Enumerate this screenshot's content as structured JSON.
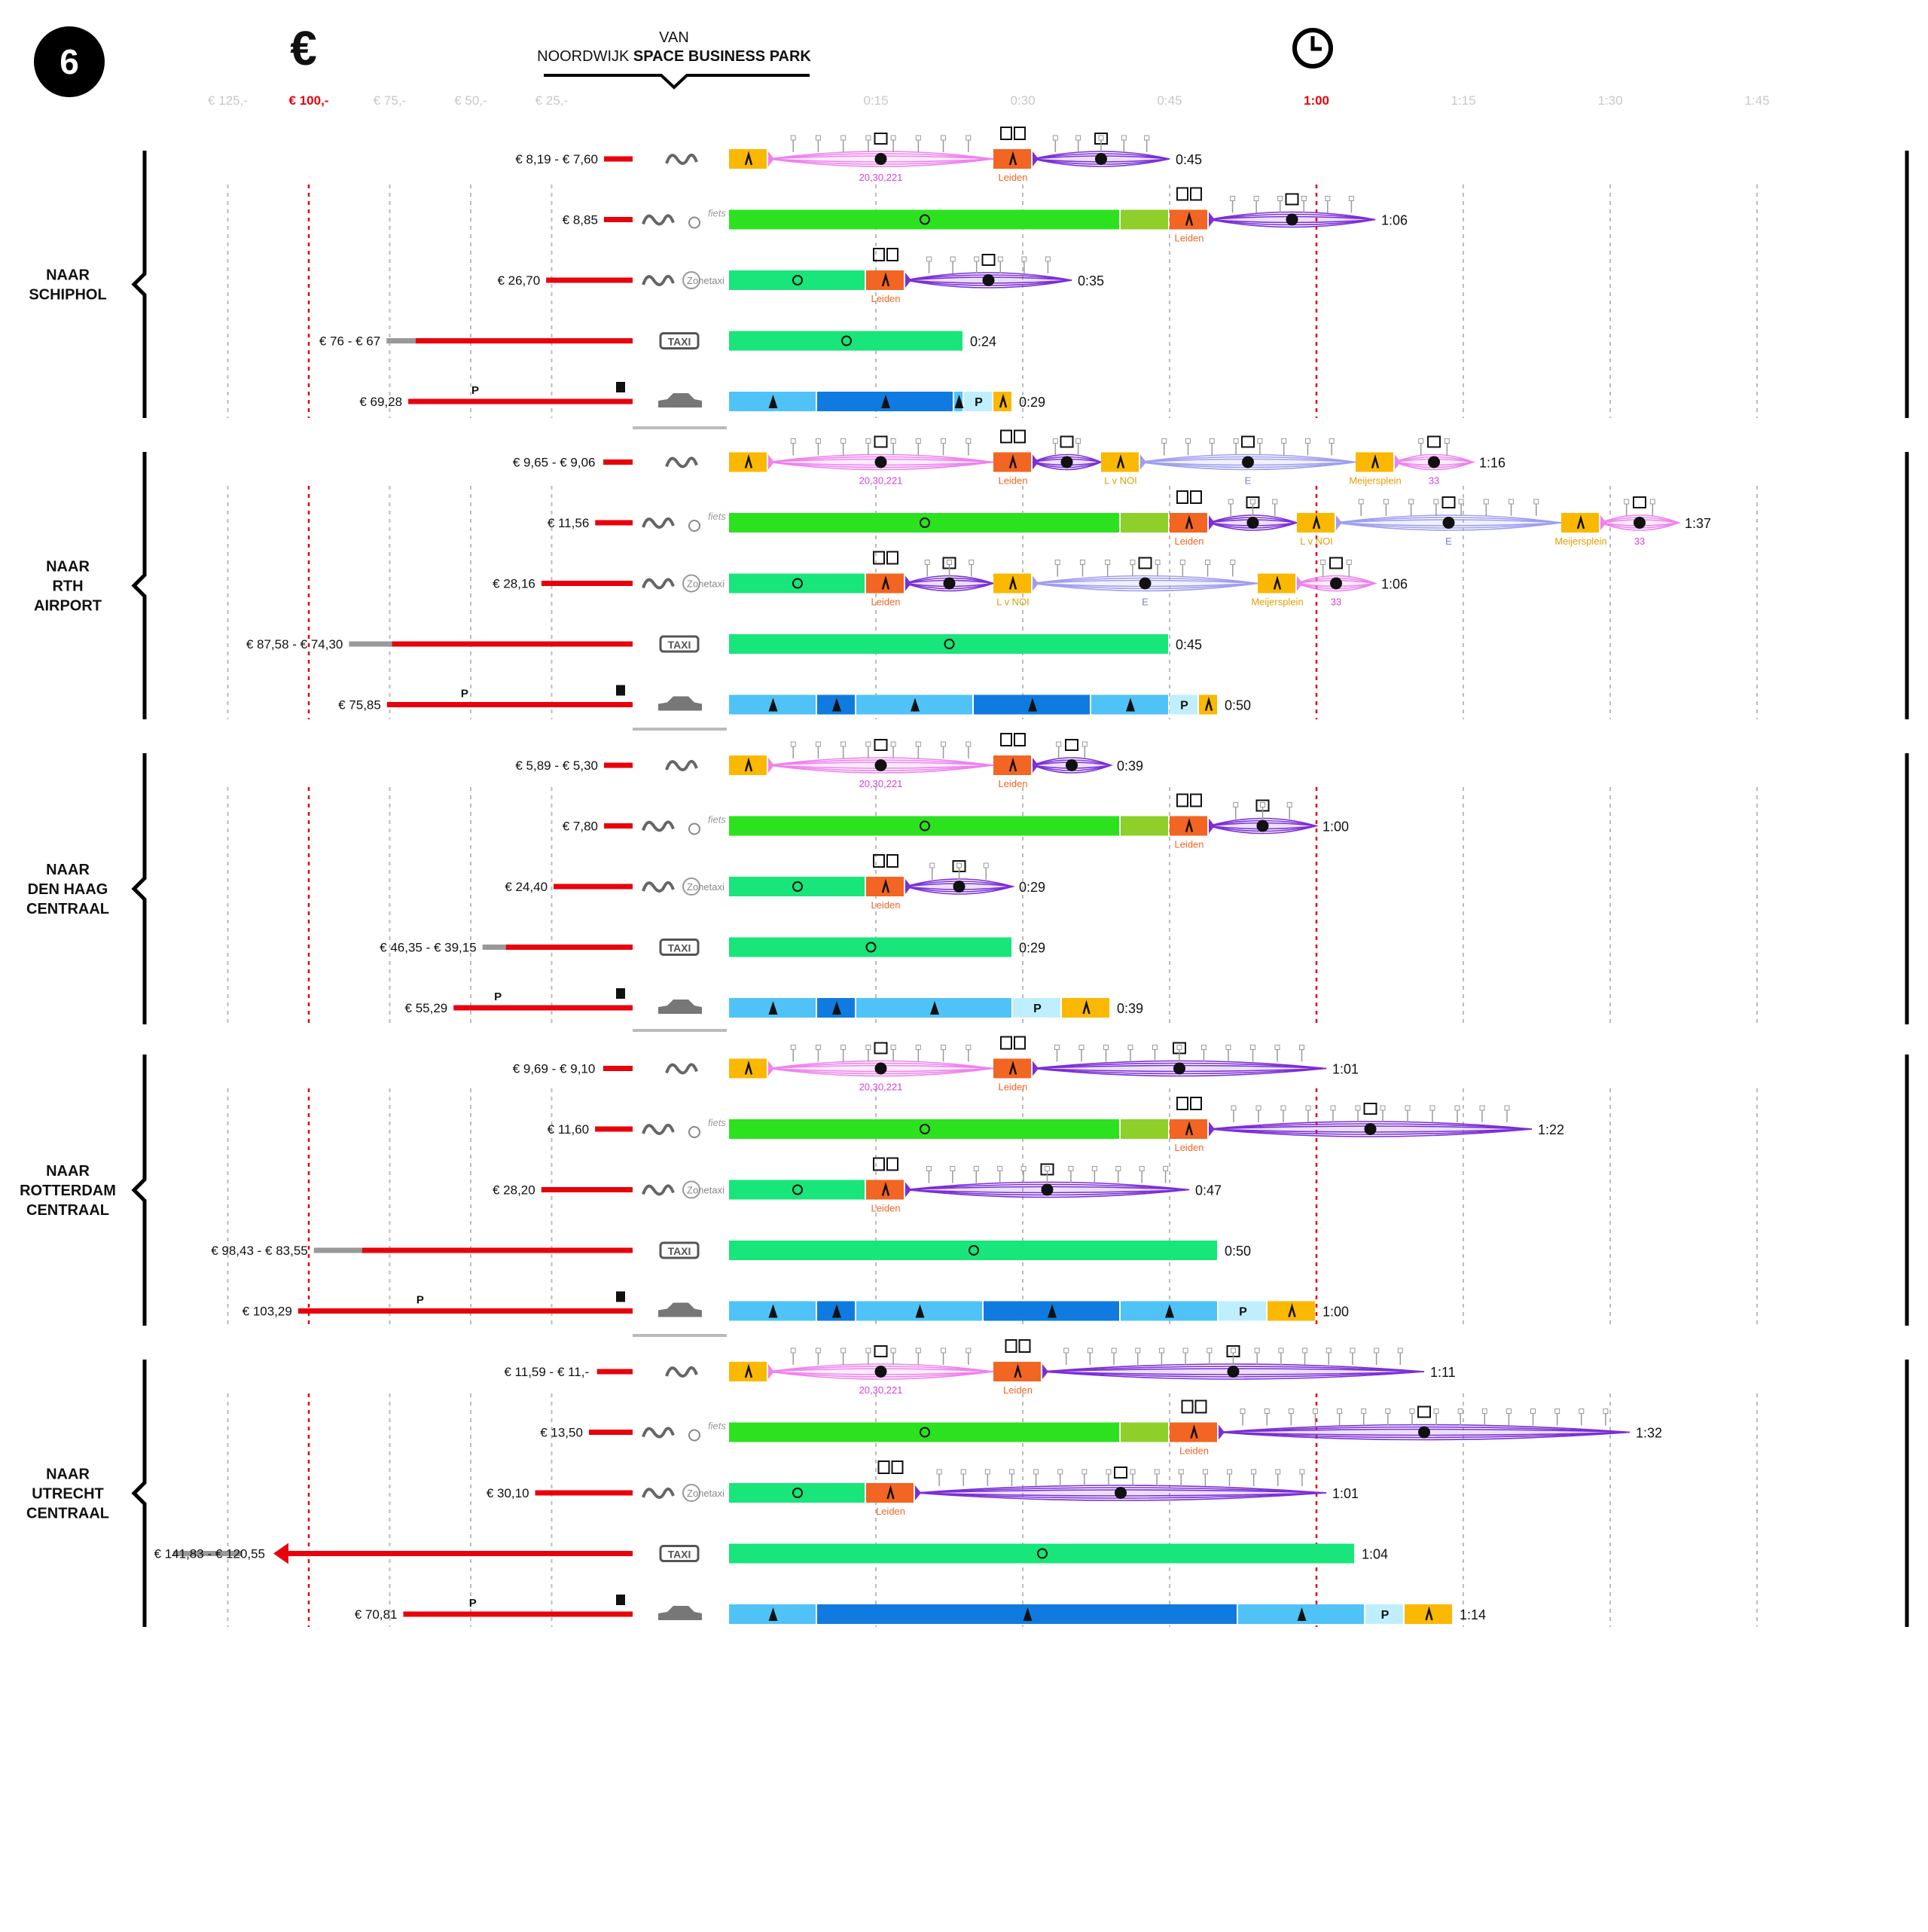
{
  "header": {
    "number": "6",
    "currency_symbol": "€",
    "origin_line1": "VAN",
    "origin_line2a": "NOORDWIJK ",
    "origin_line2b": "SPACE BUSINESS PARK",
    "clock_icon": "clock-icon"
  },
  "cost_axis": {
    "ticks": [
      "€ 125,-",
      "€ 100,-",
      "€ 75,-",
      "€ 50,-",
      "€ 25,-"
    ],
    "highlight": "€ 100,-",
    "unit": "euro"
  },
  "time_axis": {
    "ticks": [
      "0:15",
      "0:30",
      "0:45",
      "1:00",
      "1:15",
      "1:30",
      "1:45"
    ],
    "highlight": "1:00",
    "unit": "hours:minutes"
  },
  "colors": {
    "accent_red": "#e8000b",
    "gray_tick": "#c8c8c8",
    "walk": "#fbb800",
    "bus": "#ee82ee",
    "train": "#7b2fd6",
    "transfer": "#f26522",
    "bike": "#2ce21f",
    "bike_park": "#8fcf2a",
    "taxi": "#18e57a",
    "car_light": "#4fc3f7",
    "car_dark": "#0f7be0",
    "parking": "#bfefff",
    "tram": "#9e9eef"
  },
  "destinations": [
    {
      "label": [
        "NAAR",
        "SCHIPHOL"
      ]
    },
    {
      "label": [
        "NAAR",
        "RTH",
        "AIRPORT"
      ]
    },
    {
      "label": [
        "NAAR",
        "DEN HAAG",
        "CENTRAAL"
      ]
    },
    {
      "label": [
        "NAAR",
        "ROTTERDAM",
        "CENTRAAL"
      ]
    },
    {
      "label": [
        "NAAR",
        "UTRECHT",
        "CENTRAAL"
      ]
    }
  ],
  "rows": [
    {
      "group": 0,
      "mode": "ov",
      "cost": "€ 8,19 - € 7,60",
      "cost_min": 7.6,
      "cost_max": 8.19,
      "time": "0:45",
      "segments": [
        [
          "walk",
          0,
          4
        ],
        [
          "bus",
          4,
          27,
          "20,30,221"
        ],
        [
          "transfer",
          27,
          31,
          "Leiden"
        ],
        [
          "train",
          31,
          45
        ]
      ]
    },
    {
      "group": 0,
      "mode": "ov-fiets",
      "cost": "€ 8,85",
      "cost_min": 8.85,
      "cost_max": 8.85,
      "time": "1:06",
      "segments": [
        [
          "bike",
          0,
          40
        ],
        [
          "bikepark",
          40,
          45
        ],
        [
          "transfer",
          45,
          49,
          "Leiden"
        ],
        [
          "train",
          49,
          66
        ]
      ]
    },
    {
      "group": 0,
      "mode": "ov-zonetaxi",
      "cost": "€ 26,70",
      "cost_min": 26.7,
      "cost_max": 26.7,
      "time": "0:35",
      "segments": [
        [
          "taxi",
          0,
          14
        ],
        [
          "transfer",
          14,
          18,
          "Leiden"
        ],
        [
          "train",
          18,
          35
        ]
      ]
    },
    {
      "group": 0,
      "mode": "taxi",
      "cost": "€ 76 - € 67",
      "cost_min": 67,
      "cost_max": 76,
      "time": "0:24",
      "segments": [
        [
          "taxi",
          0,
          24
        ]
      ]
    },
    {
      "group": 0,
      "mode": "car",
      "cost": "€ 69,28",
      "cost_min": 69.28,
      "cost_max": 69.28,
      "time": "0:29",
      "segments": [
        [
          "carlight",
          0,
          9
        ],
        [
          "cardark",
          9,
          23
        ],
        [
          "carlight",
          23,
          24
        ],
        [
          "park",
          24,
          27
        ],
        [
          "walk",
          27,
          29
        ]
      ]
    },
    {
      "group": 1,
      "mode": "ov",
      "cost": "€ 9,65 - € 9,06",
      "cost_min": 9.06,
      "cost_max": 9.65,
      "time": "1:16",
      "segments": [
        [
          "walk",
          0,
          4
        ],
        [
          "bus",
          4,
          27,
          "20,30,221"
        ],
        [
          "transfer",
          27,
          31,
          "Leiden"
        ],
        [
          "train",
          31,
          38
        ],
        [
          "walk",
          38,
          42,
          "L v NOI"
        ],
        [
          "tram",
          42,
          64,
          "E"
        ],
        [
          "walk",
          64,
          68,
          "Meijersplein"
        ],
        [
          "bus",
          68,
          76,
          "33"
        ]
      ]
    },
    {
      "group": 1,
      "mode": "ov-fiets",
      "cost": "€ 11,56",
      "cost_min": 11.56,
      "cost_max": 11.56,
      "time": "1:37",
      "segments": [
        [
          "bike",
          0,
          40
        ],
        [
          "bikepark",
          40,
          45
        ],
        [
          "transfer",
          45,
          49,
          "Leiden"
        ],
        [
          "train",
          49,
          58
        ],
        [
          "walk",
          58,
          62,
          "L v NOI"
        ],
        [
          "tram",
          62,
          85,
          "E"
        ],
        [
          "walk",
          85,
          89,
          "Meijersplein"
        ],
        [
          "bus",
          89,
          97,
          "33"
        ]
      ]
    },
    {
      "group": 1,
      "mode": "ov-zonetaxi",
      "cost": "€ 28,16",
      "cost_min": 28.16,
      "cost_max": 28.16,
      "time": "1:06",
      "segments": [
        [
          "taxi",
          0,
          14
        ],
        [
          "transfer",
          14,
          18,
          "Leiden"
        ],
        [
          "train",
          18,
          27
        ],
        [
          "walk",
          27,
          31,
          "L v NOI"
        ],
        [
          "tram",
          31,
          54,
          "E"
        ],
        [
          "walk",
          54,
          58,
          "Meijersplein"
        ],
        [
          "bus",
          58,
          66,
          "33"
        ]
      ]
    },
    {
      "group": 1,
      "mode": "taxi",
      "cost": "€ 87,58 - € 74,30",
      "cost_min": 74.3,
      "cost_max": 87.58,
      "time": "0:45",
      "segments": [
        [
          "taxi",
          0,
          45
        ]
      ]
    },
    {
      "group": 1,
      "mode": "car",
      "cost": "€ 75,85",
      "cost_min": 75.85,
      "cost_max": 75.85,
      "time": "0:50",
      "segments": [
        [
          "carlight",
          0,
          9
        ],
        [
          "cardark",
          9,
          13
        ],
        [
          "carlight",
          13,
          25
        ],
        [
          "cardark",
          25,
          37
        ],
        [
          "carlight",
          37,
          45
        ],
        [
          "park",
          45,
          48
        ],
        [
          "walk",
          48,
          50
        ]
      ]
    },
    {
      "group": 2,
      "mode": "ov",
      "cost": "€ 5,89 - € 5,30",
      "cost_min": 5.3,
      "cost_max": 5.89,
      "time": "0:39",
      "segments": [
        [
          "walk",
          0,
          4
        ],
        [
          "bus",
          4,
          27,
          "20,30,221"
        ],
        [
          "transfer",
          27,
          31,
          "Leiden"
        ],
        [
          "train",
          31,
          39
        ]
      ]
    },
    {
      "group": 2,
      "mode": "ov-fiets",
      "cost": "€ 7,80",
      "cost_min": 7.8,
      "cost_max": 7.8,
      "time": "1:00",
      "segments": [
        [
          "bike",
          0,
          40
        ],
        [
          "bikepark",
          40,
          45
        ],
        [
          "transfer",
          45,
          49,
          "Leiden"
        ],
        [
          "train",
          49,
          60
        ]
      ]
    },
    {
      "group": 2,
      "mode": "ov-zonetaxi",
      "cost": "€ 24,40",
      "cost_min": 24.4,
      "cost_max": 24.4,
      "time": "0:29",
      "segments": [
        [
          "taxi",
          0,
          14
        ],
        [
          "transfer",
          14,
          18,
          "Leiden"
        ],
        [
          "train",
          18,
          29
        ]
      ]
    },
    {
      "group": 2,
      "mode": "taxi",
      "cost": "€ 46,35 - € 39,15",
      "cost_min": 39.15,
      "cost_max": 46.35,
      "time": "0:29",
      "segments": [
        [
          "taxi",
          0,
          29
        ]
      ]
    },
    {
      "group": 2,
      "mode": "car",
      "cost": "€ 55,29",
      "cost_min": 55.29,
      "cost_max": 55.29,
      "time": "0:39",
      "segments": [
        [
          "carlight",
          0,
          9
        ],
        [
          "cardark",
          9,
          13
        ],
        [
          "carlight",
          13,
          29
        ],
        [
          "park",
          29,
          34
        ],
        [
          "walk",
          34,
          39
        ]
      ]
    },
    {
      "group": 3,
      "mode": "ov",
      "cost": "€ 9,69 - € 9,10",
      "cost_min": 9.1,
      "cost_max": 9.69,
      "time": "1:01",
      "segments": [
        [
          "walk",
          0,
          4
        ],
        [
          "bus",
          4,
          27,
          "20,30,221"
        ],
        [
          "transfer",
          27,
          31,
          "Leiden"
        ],
        [
          "train",
          31,
          61
        ]
      ]
    },
    {
      "group": 3,
      "mode": "ov-fiets",
      "cost": "€ 11,60",
      "cost_min": 11.6,
      "cost_max": 11.6,
      "time": "1:22",
      "segments": [
        [
          "bike",
          0,
          40
        ],
        [
          "bikepark",
          40,
          45
        ],
        [
          "transfer",
          45,
          49,
          "Leiden"
        ],
        [
          "train",
          49,
          82
        ]
      ]
    },
    {
      "group": 3,
      "mode": "ov-zonetaxi",
      "cost": "€ 28,20",
      "cost_min": 28.2,
      "cost_max": 28.2,
      "time": "0:47",
      "segments": [
        [
          "taxi",
          0,
          14
        ],
        [
          "transfer",
          14,
          18,
          "Leiden"
        ],
        [
          "train",
          18,
          47
        ]
      ]
    },
    {
      "group": 3,
      "mode": "taxi",
      "cost": "€ 98,43 - € 83,55",
      "cost_min": 83.55,
      "cost_max": 98.43,
      "time": "0:50",
      "segments": [
        [
          "taxi",
          0,
          50
        ]
      ]
    },
    {
      "group": 3,
      "mode": "car",
      "cost": "€ 103,29",
      "cost_min": 103.29,
      "cost_max": 103.29,
      "time": "1:00",
      "segments": [
        [
          "carlight",
          0,
          9
        ],
        [
          "cardark",
          9,
          13
        ],
        [
          "carlight",
          13,
          26
        ],
        [
          "cardark",
          26,
          40
        ],
        [
          "carlight",
          40,
          50
        ],
        [
          "park",
          50,
          55
        ],
        [
          "walk",
          55,
          60
        ]
      ]
    },
    {
      "group": 4,
      "mode": "ov",
      "cost": "€ 11,59 - € 11,-",
      "cost_min": 11,
      "cost_max": 11.59,
      "time": "1:11",
      "segments": [
        [
          "walk",
          0,
          4
        ],
        [
          "bus",
          4,
          27,
          "20,30,221"
        ],
        [
          "transfer",
          27,
          32,
          "Leiden"
        ],
        [
          "train",
          32,
          71
        ]
      ]
    },
    {
      "group": 4,
      "mode": "ov-fiets",
      "cost": "€ 13,50",
      "cost_min": 13.5,
      "cost_max": 13.5,
      "time": "1:32",
      "segments": [
        [
          "bike",
          0,
          40
        ],
        [
          "bikepark",
          40,
          45
        ],
        [
          "transfer",
          45,
          50,
          "Leiden"
        ],
        [
          "train",
          50,
          92
        ]
      ]
    },
    {
      "group": 4,
      "mode": "ov-zonetaxi",
      "cost": "€ 30,10",
      "cost_min": 30.1,
      "cost_max": 30.1,
      "time": "1:01",
      "segments": [
        [
          "taxi",
          0,
          14
        ],
        [
          "transfer",
          14,
          19,
          "Leiden"
        ],
        [
          "train",
          19,
          61
        ]
      ]
    },
    {
      "group": 4,
      "mode": "taxi",
      "cost": "€ 141,83 - € 120,55",
      "cost_min": 120.55,
      "cost_max": 141.83,
      "time": "1:04",
      "segments": [
        [
          "taxi",
          0,
          64
        ]
      ]
    },
    {
      "group": 4,
      "mode": "car",
      "cost": "€ 70,81",
      "cost_min": 70.81,
      "cost_max": 70.81,
      "time": "1:14",
      "segments": [
        [
          "carlight",
          0,
          9
        ],
        [
          "cardark",
          9,
          52
        ],
        [
          "carlight",
          52,
          65
        ],
        [
          "park",
          65,
          69
        ],
        [
          "walk",
          69,
          74
        ]
      ]
    }
  ],
  "mode_labels": {
    "fiets": "fiets",
    "zonetaxi": "Zonetaxi",
    "taxi": "TAXI",
    "parking": "P"
  },
  "chart_data": {
    "type": "bar",
    "title": "",
    "xlabel": "",
    "ylabel": "",
    "cost_axis_range": [
      0,
      125
    ],
    "time_axis_range_minutes": [
      0,
      105
    ]
  }
}
